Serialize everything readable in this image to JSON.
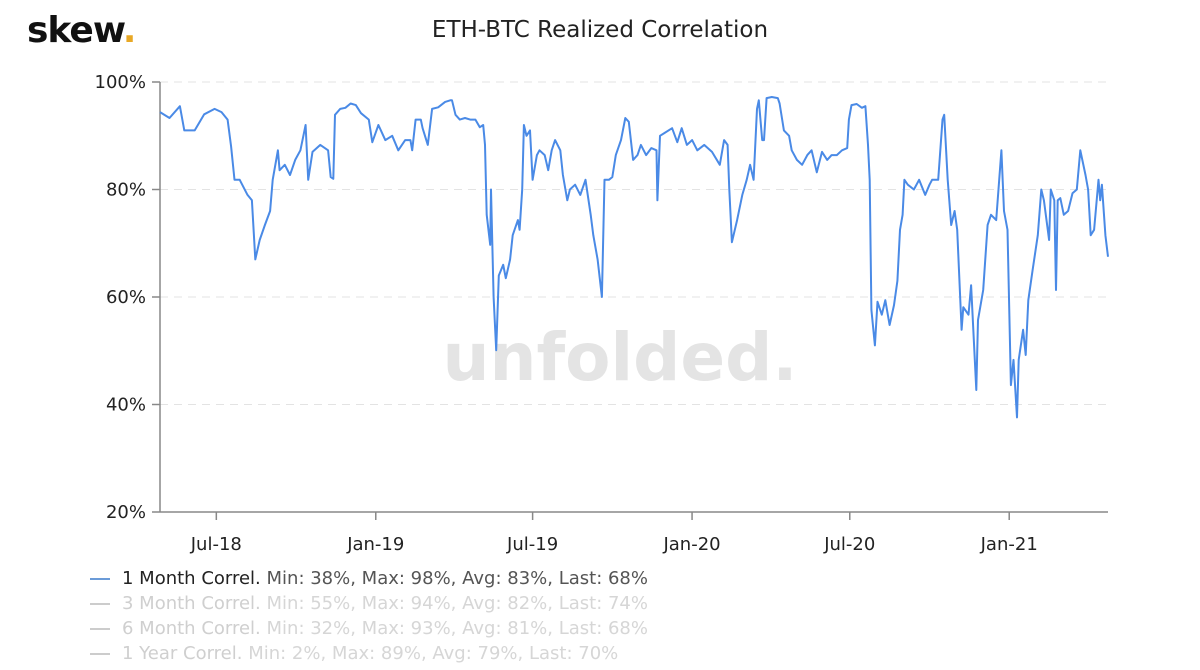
{
  "logo": {
    "text": "skew",
    "dot": "."
  },
  "chart_data": {
    "type": "line",
    "title": "ETH-BTC Realized Correlation",
    "watermark": "unfolded.",
    "xlim": [
      "2018-04-27",
      "2021-04-25"
    ],
    "ylim": [
      20,
      100
    ],
    "yticks": [
      20,
      40,
      60,
      80,
      100
    ],
    "ytick_labels": [
      "20%",
      "40%",
      "60%",
      "80%",
      "100%"
    ],
    "xticks": [
      "2018-07-01",
      "2019-01-01",
      "2019-07-01",
      "2020-01-01",
      "2020-07-01",
      "2021-01-01"
    ],
    "xtick_labels": [
      "Jul-18",
      "Jan-19",
      "Jul-19",
      "Jan-20",
      "Jul-20",
      "Jan-21"
    ],
    "grid": "horizontal dashed",
    "legend_placement": "bottom-left",
    "series": [
      {
        "name": "1 Month Correl.",
        "stats": "Min: 38%, Max: 98%, Avg: 83%, Last: 68%",
        "color": "#4a8ae6",
        "visible": true,
        "points": [
          [
            "2018-04-27",
            94.4
          ],
          [
            "2018-05-08",
            93.3
          ],
          [
            "2018-05-20",
            95.5
          ],
          [
            "2018-05-25",
            91
          ],
          [
            "2018-06-06",
            91
          ],
          [
            "2018-06-17",
            94
          ],
          [
            "2018-06-29",
            95
          ],
          [
            "2018-07-07",
            94.4
          ],
          [
            "2018-07-14",
            93
          ],
          [
            "2018-07-18",
            88
          ],
          [
            "2018-07-22",
            81.8
          ],
          [
            "2018-07-28",
            81.8
          ],
          [
            "2018-08-06",
            79
          ],
          [
            "2018-08-11",
            78
          ],
          [
            "2018-08-15",
            67
          ],
          [
            "2018-08-20",
            70.6
          ],
          [
            "2018-08-26",
            73.4
          ],
          [
            "2018-09-01",
            76
          ],
          [
            "2018-09-04",
            81.8
          ],
          [
            "2018-09-10",
            87.3
          ],
          [
            "2018-09-12",
            83.6
          ],
          [
            "2018-09-18",
            84.6
          ],
          [
            "2018-09-24",
            82.7
          ],
          [
            "2018-09-30",
            85.5
          ],
          [
            "2018-10-06",
            87.3
          ],
          [
            "2018-10-12",
            92
          ],
          [
            "2018-10-15",
            81.8
          ],
          [
            "2018-10-20",
            87
          ],
          [
            "2018-10-29",
            88.3
          ],
          [
            "2018-11-07",
            87.3
          ],
          [
            "2018-11-10",
            82.3
          ],
          [
            "2018-11-13",
            82
          ],
          [
            "2018-11-15",
            93.9
          ],
          [
            "2018-11-21",
            95
          ],
          [
            "2018-11-27",
            95.2
          ],
          [
            "2018-12-03",
            96
          ],
          [
            "2018-12-09",
            95.7
          ],
          [
            "2018-12-15",
            94.2
          ],
          [
            "2018-12-24",
            93
          ],
          [
            "2018-12-28",
            88.8
          ],
          [
            "2019-01-04",
            92
          ],
          [
            "2019-01-12",
            89.2
          ],
          [
            "2019-01-20",
            90
          ],
          [
            "2019-01-27",
            87.3
          ],
          [
            "2019-02-04",
            89.2
          ],
          [
            "2019-02-10",
            89.2
          ],
          [
            "2019-02-12",
            87.3
          ],
          [
            "2019-02-16",
            93
          ],
          [
            "2019-02-22",
            93
          ],
          [
            "2019-02-24",
            91.4
          ],
          [
            "2019-03-02",
            88.3
          ],
          [
            "2019-03-07",
            95
          ],
          [
            "2019-03-14",
            95.3
          ],
          [
            "2019-03-22",
            96.3
          ],
          [
            "2019-03-28",
            96.6
          ],
          [
            "2019-03-30",
            96.6
          ],
          [
            "2019-04-03",
            93.9
          ],
          [
            "2019-04-08",
            93
          ],
          [
            "2019-04-14",
            93.3
          ],
          [
            "2019-04-20",
            93
          ],
          [
            "2019-04-26",
            93
          ],
          [
            "2019-05-01",
            91.6
          ],
          [
            "2019-05-05",
            92
          ],
          [
            "2019-05-07",
            88.3
          ],
          [
            "2019-05-09",
            75.3
          ],
          [
            "2019-05-13",
            69.7
          ],
          [
            "2019-05-14",
            80
          ],
          [
            "2019-05-17",
            60
          ],
          [
            "2019-05-20",
            50.1
          ],
          [
            "2019-05-23",
            64
          ],
          [
            "2019-05-28",
            66
          ],
          [
            "2019-05-31",
            63.5
          ],
          [
            "2019-06-05",
            67
          ],
          [
            "2019-06-08",
            71.5
          ],
          [
            "2019-06-14",
            74.3
          ],
          [
            "2019-06-16",
            72.5
          ],
          [
            "2019-06-19",
            80
          ],
          [
            "2019-06-21",
            92
          ],
          [
            "2019-06-24",
            90
          ],
          [
            "2019-06-28",
            91
          ],
          [
            "2019-07-01",
            81.8
          ],
          [
            "2019-07-06",
            86.4
          ],
          [
            "2019-07-09",
            87.3
          ],
          [
            "2019-07-15",
            86.4
          ],
          [
            "2019-07-19",
            83.6
          ],
          [
            "2019-07-23",
            87.3
          ],
          [
            "2019-07-27",
            89.2
          ],
          [
            "2019-08-02",
            87.3
          ],
          [
            "2019-08-05",
            82.7
          ],
          [
            "2019-08-10",
            78
          ],
          [
            "2019-08-13",
            80
          ],
          [
            "2019-08-19",
            80.9
          ],
          [
            "2019-08-25",
            79
          ],
          [
            "2019-08-31",
            81.8
          ],
          [
            "2019-09-06",
            75.3
          ],
          [
            "2019-09-09",
            71.5
          ],
          [
            "2019-09-14",
            67
          ],
          [
            "2019-09-19",
            60
          ],
          [
            "2019-09-22",
            81.8
          ],
          [
            "2019-09-27",
            81.8
          ],
          [
            "2019-10-01",
            82.3
          ],
          [
            "2019-10-05",
            86.4
          ],
          [
            "2019-10-11",
            89.2
          ],
          [
            "2019-10-16",
            93.3
          ],
          [
            "2019-10-20",
            92.6
          ],
          [
            "2019-10-25",
            85.5
          ],
          [
            "2019-10-30",
            86.4
          ],
          [
            "2019-11-03",
            88.3
          ],
          [
            "2019-11-09",
            86.4
          ],
          [
            "2019-11-15",
            87.7
          ],
          [
            "2019-11-21",
            87.3
          ],
          [
            "2019-11-22",
            78
          ],
          [
            "2019-11-25",
            90
          ],
          [
            "2019-11-30",
            90.5
          ],
          [
            "2019-12-09",
            91.4
          ],
          [
            "2019-12-15",
            88.8
          ],
          [
            "2019-12-20",
            91.4
          ],
          [
            "2019-12-26",
            88.3
          ],
          [
            "2020-01-01",
            89.2
          ],
          [
            "2020-01-07",
            87.3
          ],
          [
            "2020-01-15",
            88.3
          ],
          [
            "2020-01-24",
            87
          ],
          [
            "2020-02-02",
            84.6
          ],
          [
            "2020-02-07",
            89.2
          ],
          [
            "2020-02-11",
            88.3
          ],
          [
            "2020-02-13",
            80
          ],
          [
            "2020-02-16",
            70.2
          ],
          [
            "2020-02-22",
            74.3
          ],
          [
            "2020-02-28",
            79
          ],
          [
            "2020-03-04",
            81.8
          ],
          [
            "2020-03-08",
            84.6
          ],
          [
            "2020-03-12",
            81.8
          ],
          [
            "2020-03-16",
            95
          ],
          [
            "2020-03-18",
            96.6
          ],
          [
            "2020-03-22",
            89.2
          ],
          [
            "2020-03-24",
            89.2
          ],
          [
            "2020-03-27",
            97
          ],
          [
            "2020-04-02",
            97.2
          ],
          [
            "2020-04-09",
            97
          ],
          [
            "2020-04-11",
            96
          ],
          [
            "2020-04-16",
            91
          ],
          [
            "2020-04-22",
            90
          ],
          [
            "2020-04-25",
            87.3
          ],
          [
            "2020-05-01",
            85.5
          ],
          [
            "2020-05-07",
            84.6
          ],
          [
            "2020-05-13",
            86.4
          ],
          [
            "2020-05-18",
            87.3
          ],
          [
            "2020-05-24",
            83.2
          ],
          [
            "2020-05-30",
            87
          ],
          [
            "2020-06-05",
            85.5
          ],
          [
            "2020-06-10",
            86.4
          ],
          [
            "2020-06-16",
            86.4
          ],
          [
            "2020-06-22",
            87.3
          ],
          [
            "2020-06-28",
            87.7
          ],
          [
            "2020-06-30",
            93
          ],
          [
            "2020-07-03",
            95.7
          ],
          [
            "2020-07-09",
            95.9
          ],
          [
            "2020-07-15",
            95.2
          ],
          [
            "2020-07-19",
            95.5
          ],
          [
            "2020-07-22",
            88.3
          ],
          [
            "2020-07-24",
            81.8
          ],
          [
            "2020-07-26",
            57.6
          ],
          [
            "2020-07-30",
            51
          ],
          [
            "2020-08-02",
            59.1
          ],
          [
            "2020-08-07",
            56.7
          ],
          [
            "2020-08-11",
            59.4
          ],
          [
            "2020-08-16",
            54.8
          ],
          [
            "2020-08-21",
            58.5
          ],
          [
            "2020-08-25",
            63
          ],
          [
            "2020-08-28",
            72.5
          ],
          [
            "2020-08-31",
            75.3
          ],
          [
            "2020-09-02",
            81.8
          ],
          [
            "2020-09-06",
            80.9
          ],
          [
            "2020-09-13",
            80
          ],
          [
            "2020-09-19",
            81.8
          ],
          [
            "2020-09-26",
            79
          ],
          [
            "2020-10-01",
            80.9
          ],
          [
            "2020-10-04",
            81.8
          ],
          [
            "2020-10-11",
            81.8
          ],
          [
            "2020-10-16",
            93
          ],
          [
            "2020-10-18",
            93.9
          ],
          [
            "2020-10-22",
            81.8
          ],
          [
            "2020-10-26",
            73.4
          ],
          [
            "2020-10-30",
            76
          ],
          [
            "2020-11-02",
            72.5
          ],
          [
            "2020-11-07",
            53.9
          ],
          [
            "2020-11-09",
            58.1
          ],
          [
            "2020-11-15",
            56.7
          ],
          [
            "2020-11-18",
            62.2
          ],
          [
            "2020-11-24",
            42.7
          ],
          [
            "2020-11-26",
            55.7
          ],
          [
            "2020-12-02",
            61.3
          ],
          [
            "2020-12-07",
            73.4
          ],
          [
            "2020-12-11",
            75.3
          ],
          [
            "2020-12-17",
            74.3
          ],
          [
            "2020-12-23",
            87.3
          ],
          [
            "2020-12-26",
            76
          ],
          [
            "2020-12-30",
            72.5
          ],
          [
            "2021-01-03",
            43.6
          ],
          [
            "2021-01-06",
            48.3
          ],
          [
            "2021-01-10",
            37.6
          ],
          [
            "2021-01-12",
            48.3
          ],
          [
            "2021-01-17",
            53.9
          ],
          [
            "2021-01-20",
            49.2
          ],
          [
            "2021-01-23",
            59.4
          ],
          [
            "2021-01-28",
            65
          ],
          [
            "2021-02-03",
            71.5
          ],
          [
            "2021-02-07",
            80
          ],
          [
            "2021-02-10",
            78
          ],
          [
            "2021-02-16",
            70.6
          ],
          [
            "2021-02-18",
            80
          ],
          [
            "2021-02-22",
            78
          ],
          [
            "2021-02-24",
            61.3
          ],
          [
            "2021-02-26",
            78
          ],
          [
            "2021-03-01",
            78.4
          ],
          [
            "2021-03-05",
            75.3
          ],
          [
            "2021-03-10",
            76
          ],
          [
            "2021-03-15",
            79.3
          ],
          [
            "2021-03-20",
            80
          ],
          [
            "2021-03-24",
            87.3
          ],
          [
            "2021-03-30",
            82.7
          ],
          [
            "2021-04-02",
            80
          ],
          [
            "2021-04-05",
            71.5
          ],
          [
            "2021-04-09",
            72.5
          ],
          [
            "2021-04-14",
            81.8
          ],
          [
            "2021-04-16",
            78
          ],
          [
            "2021-04-18",
            80.9
          ],
          [
            "2021-04-22",
            71.5
          ],
          [
            "2021-04-25",
            67.5
          ]
        ]
      },
      {
        "name": "3 Month Correl.",
        "stats": "Min: 55%, Max: 94%, Avg: 82%, Last: 74%",
        "color": "#cccccc",
        "visible": false
      },
      {
        "name": "6 Month Correl.",
        "stats": "Min: 32%, Max: 93%, Avg: 81%, Last: 68%",
        "color": "#cccccc",
        "visible": false
      },
      {
        "name": "1 Year Correl.",
        "stats": "Min: 2%, Max: 89%, Avg: 79%, Last: 70%",
        "color": "#cccccc",
        "visible": false
      }
    ]
  }
}
